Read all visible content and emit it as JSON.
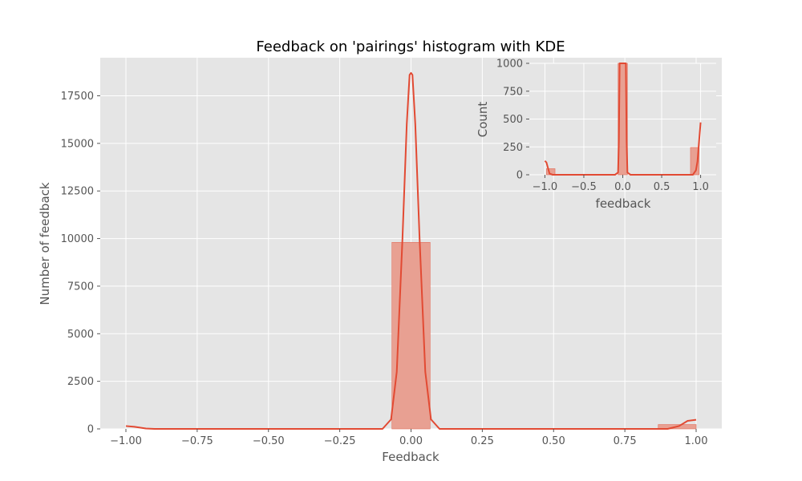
{
  "chart_data": [
    {
      "type": "bar",
      "title": "Feedback on 'pairings' histogram with KDE",
      "xlabel": "Feedback",
      "ylabel": "Number of feedback",
      "xlim": [
        -1.09,
        1.09
      ],
      "ylim": [
        0,
        19500
      ],
      "xticks": [
        -1.0,
        -0.75,
        -0.5,
        -0.25,
        0.0,
        0.25,
        0.5,
        0.75,
        1.0
      ],
      "xtick_labels": [
        "−1.00",
        "−0.75",
        "−0.50",
        "−0.25",
        "0.00",
        "0.25",
        "0.50",
        "0.75",
        "1.00"
      ],
      "yticks": [
        0,
        2500,
        5000,
        7500,
        10000,
        12500,
        15000,
        17500
      ],
      "ytick_labels": [
        "0",
        "2500",
        "5000",
        "7500",
        "10000",
        "12500",
        "15000",
        "17500"
      ],
      "grid": true,
      "bars": [
        {
          "x0": -0.067,
          "x1": 0.067,
          "value": 9800
        },
        {
          "x0": 0.867,
          "x1": 1.0,
          "value": 230
        }
      ],
      "kde": {
        "x": [
          -1.0,
          -0.97,
          -0.93,
          -0.9,
          -0.5,
          -0.1,
          -0.07,
          -0.05,
          -0.03,
          -0.015,
          -0.005,
          0.0,
          0.005,
          0.015,
          0.03,
          0.05,
          0.07,
          0.1,
          0.5,
          0.9,
          0.94,
          0.97,
          1.0
        ],
        "y": [
          150,
          110,
          20,
          0,
          0,
          0,
          500,
          3000,
          10000,
          16000,
          18600,
          18700,
          18600,
          16000,
          10000,
          3000,
          500,
          0,
          0,
          0,
          150,
          420,
          480
        ]
      }
    },
    {
      "type": "bar",
      "xlabel": "feedback",
      "ylabel": "Count",
      "xlim": [
        -1.2,
        1.2
      ],
      "ylim": [
        0,
        1000
      ],
      "xticks": [
        -1.0,
        -0.5,
        0.0,
        0.5,
        1.0
      ],
      "xtick_labels": [
        "−1.0",
        "−0.5",
        "0.0",
        "0.5",
        "1.0"
      ],
      "yticks": [
        0,
        250,
        500,
        750,
        1000
      ],
      "ytick_labels": [
        "0",
        "250",
        "500",
        "750",
        "1000"
      ],
      "grid": true,
      "bars": [
        {
          "x0": -0.98,
          "x1": -0.87,
          "value": 55
        },
        {
          "x0": -0.06,
          "x1": 0.06,
          "value": 1000
        },
        {
          "x0": 0.87,
          "x1": 0.98,
          "value": 245
        }
      ],
      "kde": {
        "x": [
          -1.0,
          -0.98,
          -0.96,
          -0.94,
          -0.9,
          -0.5,
          -0.1,
          -0.06,
          -0.05,
          -0.04,
          0.04,
          0.05,
          0.06,
          0.1,
          0.5,
          0.9,
          0.94,
          0.96,
          0.98,
          1.0
        ],
        "y": [
          125,
          110,
          60,
          10,
          0,
          0,
          0,
          20,
          300,
          1000,
          1000,
          300,
          20,
          0,
          0,
          0,
          40,
          120,
          300,
          470
        ]
      }
    }
  ],
  "colors": {
    "plot_background": "#e5e5e5",
    "grid": "#ffffff",
    "bar_fill": "#e8a092",
    "bar_stroke": "#e2705e",
    "kde_line": "#e24a33",
    "tick_text": "#555555"
  }
}
